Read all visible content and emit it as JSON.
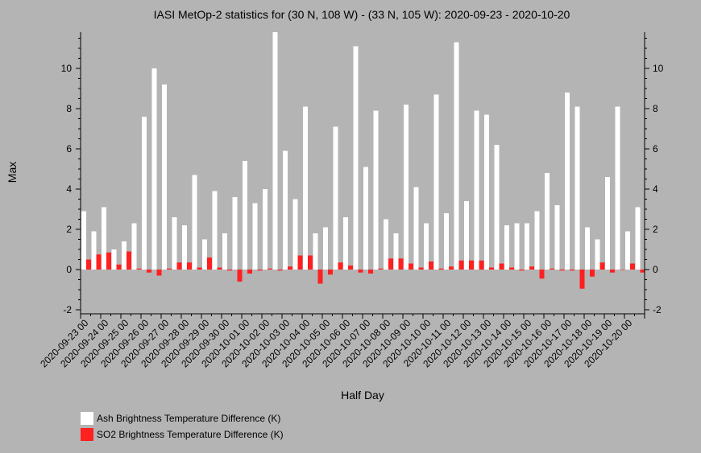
{
  "chart_data": {
    "type": "bar",
    "title": "IASI MetOp-2 statistics for (30 N, 108 W) - (33 N, 105 W): 2020-09-23 - 2020-10-20",
    "xlabel": "Half Day",
    "ylabel": "Max",
    "ylim": [
      -2.2,
      11.8
    ],
    "yticks": [
      -2,
      0,
      2,
      4,
      6,
      8,
      10
    ],
    "xtick_labels": [
      "2020-09-23 00",
      "2020-09-24 00",
      "2020-09-25 00",
      "2020-09-26 00",
      "2020-09-27 00",
      "2020-09-28 00",
      "2020-09-29 00",
      "2020-09-30 00",
      "2020-10-01 00",
      "2020-10-02 00",
      "2020-10-03 00",
      "2020-10-04 00",
      "2020-10-05 00",
      "2020-10-06 00",
      "2020-10-07 00",
      "2020-10-08 00",
      "2020-10-09 00",
      "2020-10-10 00",
      "2020-10-11 00",
      "2020-10-12 00",
      "2020-10-13 00",
      "2020-10-14 00",
      "2020-10-15 00",
      "2020-10-16 00",
      "2020-10-17 00",
      "2020-10-18 00",
      "2020-10-19 00",
      "2020-10-20 00"
    ],
    "legend_position": "bottom-left",
    "series": [
      {
        "name": "Ash Brightness Temperature Difference (K)",
        "color": "#ffffff",
        "values": [
          2.9,
          1.9,
          3.1,
          1.0,
          1.4,
          2.3,
          7.6,
          10.0,
          9.2,
          2.6,
          2.2,
          4.7,
          1.5,
          3.9,
          1.8,
          3.6,
          5.4,
          3.3,
          4.0,
          11.8,
          5.9,
          3.5,
          8.1,
          1.8,
          2.1,
          7.1,
          2.6,
          11.1,
          5.1,
          7.9,
          2.5,
          1.8,
          8.2,
          4.1,
          2.3,
          8.7,
          2.8,
          11.3,
          3.4,
          7.9,
          7.7,
          6.2,
          2.2,
          2.3,
          2.3,
          2.9,
          4.8,
          3.2,
          8.8,
          8.1,
          2.1,
          1.5,
          4.6,
          8.1,
          1.9,
          3.1
        ]
      },
      {
        "name": "SO2 Brightness Temperature Difference (K)",
        "color": "#ff2020",
        "values": [
          0.5,
          0.75,
          0.85,
          0.25,
          0.9,
          0.05,
          -0.15,
          -0.3,
          0.05,
          0.35,
          0.35,
          0.1,
          0.6,
          0.1,
          -0.05,
          -0.6,
          -0.2,
          -0.05,
          0.05,
          -0.05,
          0.15,
          0.7,
          0.7,
          -0.7,
          -0.25,
          0.35,
          0.2,
          -0.15,
          -0.2,
          0.05,
          0.55,
          0.55,
          0.3,
          0.1,
          0.4,
          0.05,
          0.15,
          0.45,
          0.45,
          0.45,
          0.1,
          0.3,
          0.1,
          -0.05,
          0.15,
          -0.45,
          0.05,
          -0.05,
          -0.05,
          -0.95,
          -0.35,
          0.35,
          -0.15,
          0.0,
          0.3,
          -0.15
        ]
      }
    ]
  }
}
